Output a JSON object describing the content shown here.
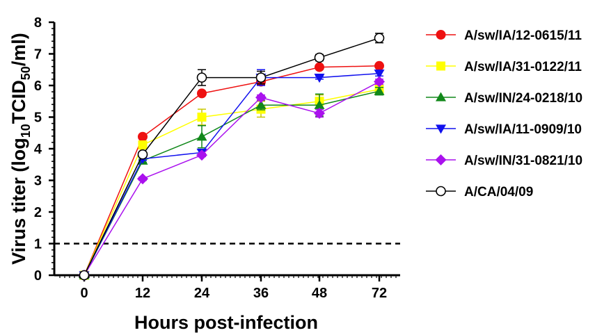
{
  "chart_data": {
    "type": "line",
    "x": [
      0,
      12,
      24,
      36,
      48,
      72
    ],
    "xtick_labels": [
      "0",
      "12",
      "24",
      "36",
      "48",
      "72"
    ],
    "ytick_labels": [
      "0",
      "1",
      "2",
      "3",
      "4",
      "5",
      "6",
      "7",
      "8"
    ],
    "yticks": [
      0,
      1,
      2,
      3,
      4,
      5,
      6,
      7,
      8
    ],
    "ylim": [
      0,
      8
    ],
    "xlabel": "Hours post-infection",
    "ylabel_parts": {
      "prefix": "Virus titer (log",
      "sub1": "10",
      "mid": "TCID",
      "sub2": "50",
      "suffix": "/ml)"
    },
    "reference_line": {
      "y": 1,
      "style": "dashed"
    },
    "grid": false,
    "legend_position": "right",
    "series": [
      {
        "name": "A/sw/IA/12-0615/11",
        "color": "#ee1111",
        "marker": "circle",
        "values": [
          0,
          4.38,
          5.75,
          6.12,
          6.58,
          6.62
        ],
        "errors": [
          0,
          0.05,
          0.05,
          0.1,
          0.05,
          0.05
        ]
      },
      {
        "name": "A/sw/IA/31-0122/11",
        "color": "#ffff00",
        "marker": "square",
        "values": [
          0,
          4.12,
          5.0,
          5.25,
          5.5,
          5.88
        ],
        "errors": [
          0,
          0.08,
          0.25,
          0.25,
          0.2,
          0.1
        ]
      },
      {
        "name": "A/sw/IN/24-0218/10",
        "color": "#11881a",
        "marker": "triangle-up",
        "values": [
          0,
          3.62,
          4.38,
          5.38,
          5.38,
          5.82
        ],
        "errors": [
          0,
          0.05,
          0.35,
          0.15,
          0.35,
          0.12
        ]
      },
      {
        "name": "A/sw/IA/11-0909/10",
        "color": "#1111ee",
        "marker": "triangle-down",
        "values": [
          0,
          3.68,
          3.88,
          6.25,
          6.25,
          6.38
        ],
        "errors": [
          0,
          0.05,
          0.1,
          0.25,
          0.05,
          0.08
        ]
      },
      {
        "name": "A/sw/IN/31-0821/10",
        "color": "#aa11ee",
        "marker": "diamond",
        "values": [
          0,
          3.05,
          3.8,
          5.62,
          5.12,
          6.12
        ],
        "errors": [
          0,
          0.05,
          0.05,
          0.08,
          0.12,
          0.08
        ]
      },
      {
        "name": "A/CA/04/09",
        "color": "#000000",
        "marker": "circle-open",
        "values": [
          0,
          3.82,
          6.25,
          6.25,
          6.88,
          7.5
        ],
        "errors": [
          0,
          0.05,
          0.25,
          0.2,
          0.1,
          0.15
        ]
      }
    ]
  }
}
